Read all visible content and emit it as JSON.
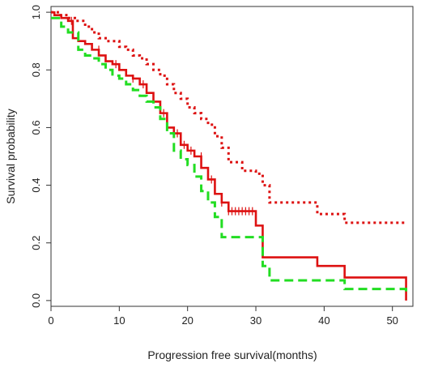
{
  "chart_data": {
    "type": "line",
    "title": "",
    "xlabel": "Progression free survival(months)",
    "ylabel": "Survival probability",
    "xlim": [
      0,
      53
    ],
    "ylim": [
      -0.02,
      1.02
    ],
    "x_ticks": [
      0,
      10,
      20,
      30,
      40,
      50
    ],
    "x_tick_labels": [
      "0",
      "10",
      "20",
      "30",
      "40",
      "50"
    ],
    "y_ticks": [
      0.0,
      0.2,
      0.4,
      0.6,
      0.8,
      1.0
    ],
    "y_tick_labels": [
      "0.0",
      "0.2",
      "0.4",
      "0.6",
      "0.8",
      "1.0"
    ],
    "grid": false,
    "legend": "none",
    "series": [
      {
        "role": "survival-estimate",
        "style": "solid",
        "color": "#dd1111",
        "step": true,
        "x": [
          0,
          0.5,
          1.5,
          2.5,
          3.2,
          4,
          5,
          6,
          7,
          8,
          9,
          10,
          11,
          12,
          13,
          14,
          15,
          16,
          17,
          18,
          19,
          20,
          21,
          22,
          23,
          24,
          25,
          26,
          30,
          31,
          39,
          43,
          52
        ],
        "y": [
          1.0,
          0.99,
          0.98,
          0.97,
          0.91,
          0.9,
          0.89,
          0.87,
          0.85,
          0.83,
          0.82,
          0.8,
          0.78,
          0.77,
          0.75,
          0.72,
          0.69,
          0.65,
          0.6,
          0.58,
          0.54,
          0.52,
          0.5,
          0.46,
          0.42,
          0.37,
          0.34,
          0.31,
          0.26,
          0.15,
          0.12,
          0.08,
          0.0
        ]
      },
      {
        "role": "upper-confidence-bound",
        "style": "dotted",
        "color": "#dd1111",
        "step": true,
        "x": [
          0,
          1,
          2.5,
          3.5,
          5,
          6,
          7,
          8,
          10,
          11,
          12,
          13,
          14,
          15,
          16,
          17,
          18,
          19,
          20,
          21,
          22,
          23,
          24,
          25,
          26,
          28,
          30,
          31,
          32,
          39,
          43,
          52
        ],
        "y": [
          1.0,
          0.99,
          0.98,
          0.97,
          0.95,
          0.93,
          0.91,
          0.9,
          0.88,
          0.87,
          0.85,
          0.84,
          0.82,
          0.8,
          0.78,
          0.75,
          0.72,
          0.7,
          0.67,
          0.65,
          0.63,
          0.61,
          0.57,
          0.53,
          0.48,
          0.45,
          0.44,
          0.4,
          0.34,
          0.3,
          0.27,
          0.27
        ]
      },
      {
        "role": "lower-confidence-bound",
        "style": "dashed",
        "color": "#22dd22",
        "step": true,
        "x": [
          0,
          1.5,
          2.5,
          4,
          5,
          6,
          7,
          8,
          9,
          10,
          11,
          12,
          13,
          14,
          15,
          16,
          17,
          18,
          19,
          20,
          21,
          22,
          23,
          24,
          25,
          31,
          32,
          43,
          52
        ],
        "y": [
          0.98,
          0.95,
          0.93,
          0.87,
          0.85,
          0.84,
          0.82,
          0.8,
          0.78,
          0.77,
          0.75,
          0.73,
          0.71,
          0.69,
          0.67,
          0.63,
          0.58,
          0.52,
          0.49,
          0.47,
          0.43,
          0.38,
          0.34,
          0.29,
          0.22,
          0.12,
          0.07,
          0.04,
          0.02
        ]
      }
    ],
    "censor_marks": {
      "color": "#dd1111",
      "x": [
        3,
        7,
        9.5,
        12,
        13.5,
        16.5,
        18.5,
        19.5,
        20.5,
        22,
        23.5,
        25,
        26,
        26.5,
        27,
        27.5,
        28,
        28.5,
        29,
        29.5
      ],
      "y": [
        0.97,
        0.87,
        0.82,
        0.77,
        0.75,
        0.65,
        0.58,
        0.54,
        0.52,
        0.5,
        0.42,
        0.34,
        0.31,
        0.31,
        0.31,
        0.31,
        0.31,
        0.31,
        0.31,
        0.31
      ]
    }
  }
}
